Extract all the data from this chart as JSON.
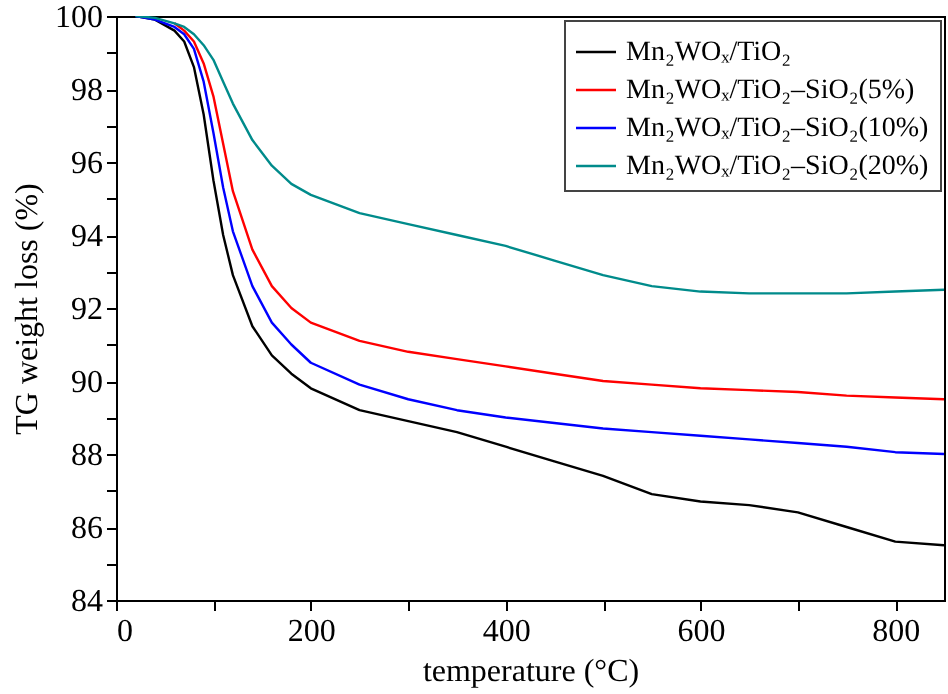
{
  "chart_data": {
    "type": "line",
    "xlabel": "temperature (°C)",
    "ylabel": "TG weight loss (%)",
    "xlim": [
      0,
      850
    ],
    "xticks": [
      0,
      {
        "value": 100,
        "label": null
      },
      200,
      {
        "value": 300,
        "label": null
      },
      400,
      {
        "value": 500,
        "label": null
      },
      600,
      {
        "value": 700,
        "label": null
      },
      800
    ],
    "ylim": [
      84,
      100
    ],
    "yticks": [
      84,
      {
        "value": 85,
        "label": null
      },
      86,
      {
        "value": 87,
        "label": null
      },
      88,
      {
        "value": 89,
        "label": null
      },
      90,
      {
        "value": 91,
        "label": null
      },
      92,
      {
        "value": 93,
        "label": null
      },
      94,
      {
        "value": 95,
        "label": null
      },
      96,
      {
        "value": 97,
        "label": null
      },
      98,
      {
        "value": 99,
        "label": null
      },
      100
    ],
    "grid": false,
    "legend": "top right",
    "marker": "none",
    "line_style": "solid",
    "x": [
      20,
      40,
      60,
      70,
      80,
      90,
      100,
      110,
      120,
      140,
      160,
      180,
      200,
      250,
      300,
      350,
      400,
      450,
      500,
      550,
      600,
      650,
      700,
      750,
      800,
      850
    ],
    "series": [
      {
        "name": "Mn₂WOₓ/TiO₂",
        "color": "#000000",
        "values": [
          100,
          99.9,
          99.6,
          99.3,
          98.6,
          97.3,
          95.5,
          94.0,
          92.9,
          91.5,
          90.7,
          90.2,
          89.8,
          89.2,
          88.9,
          88.6,
          88.2,
          87.8,
          87.4,
          86.9,
          86.7,
          86.6,
          86.4,
          86.0,
          85.6,
          85.5
        ]
      },
      {
        "name": "Mn₂WOₓ/TiO₂–SiO₂(5%)",
        "color": "#ff0000",
        "values": [
          null,
          null,
          99.8,
          99.6,
          99.3,
          98.7,
          97.8,
          96.5,
          95.2,
          93.6,
          92.6,
          92.0,
          91.6,
          91.1,
          90.8,
          90.6,
          90.4,
          90.2,
          90.0,
          89.9,
          89.8,
          89.75,
          89.7,
          89.6,
          89.55,
          89.5
        ]
      },
      {
        "name": "Mn₂WOₓ/TiO₂–SiO₂(10%)",
        "color": "#0000ff",
        "values": [
          100,
          99.9,
          99.7,
          99.5,
          99.1,
          98.2,
          96.8,
          95.3,
          94.1,
          92.6,
          91.6,
          91.0,
          90.5,
          89.9,
          89.5,
          89.2,
          89.0,
          88.85,
          88.7,
          88.6,
          88.5,
          88.4,
          88.3,
          88.2,
          88.05,
          88.0
        ]
      },
      {
        "name": "Mn₂WOₓ/TiO₂–SiO₂(20%)",
        "color": "#008b8b",
        "values": [
          100,
          99.95,
          99.8,
          99.7,
          99.5,
          99.2,
          98.8,
          98.2,
          97.6,
          96.6,
          95.9,
          95.4,
          95.1,
          94.6,
          94.3,
          94.0,
          93.7,
          93.3,
          92.9,
          92.6,
          92.45,
          92.4,
          92.4,
          92.4,
          92.45,
          92.5
        ]
      }
    ]
  }
}
